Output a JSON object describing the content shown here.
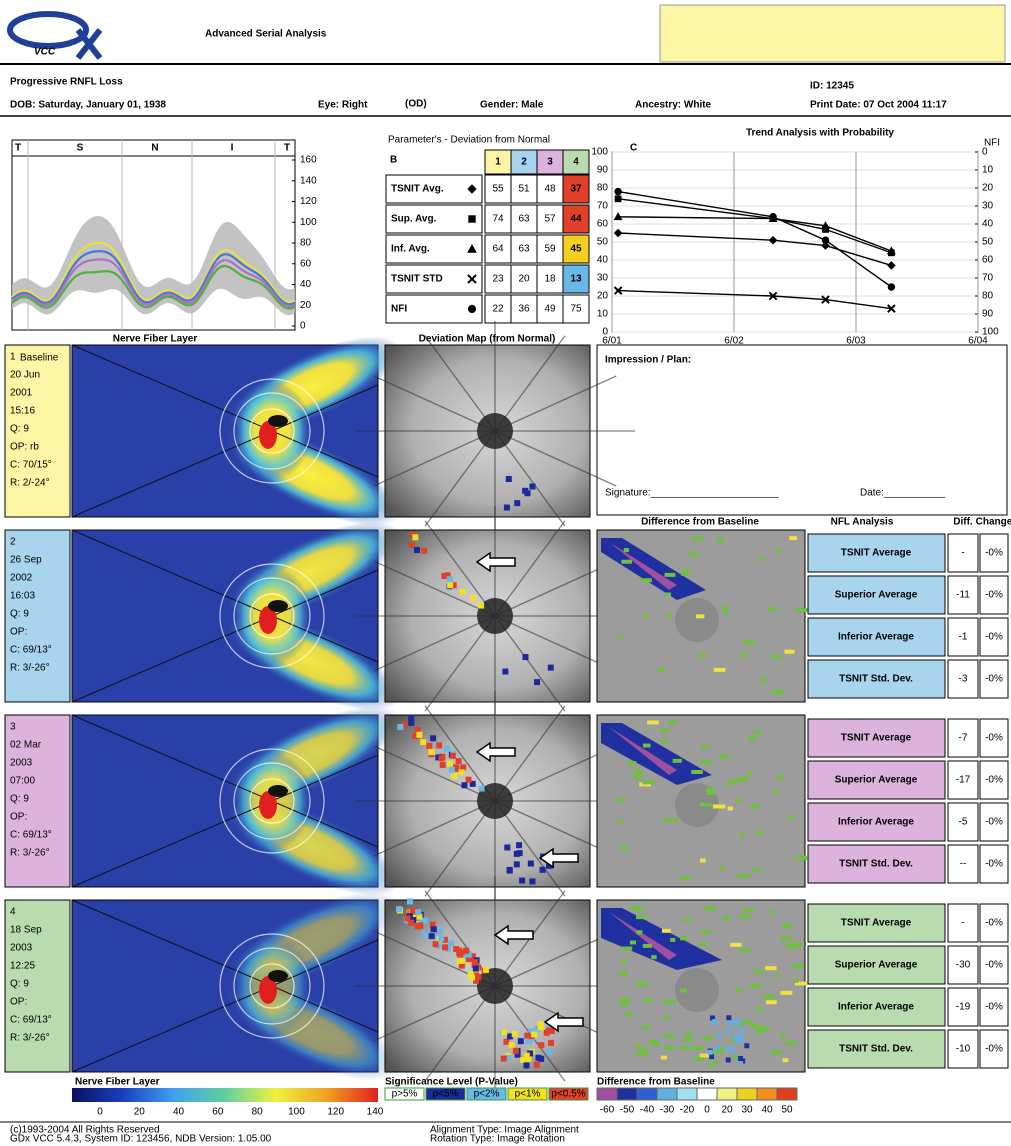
{
  "header": {
    "logo_sub": "VCC",
    "title": "Advanced Serial Analysis",
    "report_title": "Progressive RNFL Loss",
    "id": "ID: 12345"
  },
  "patient": {
    "dob": "DOB: Saturday, January 01, 1938",
    "eye": "Eye: Right",
    "eye_code": "(OD)",
    "gender": "Gender: Male",
    "ancestry": "Ancestry: White",
    "print_date": "Print Date: 07 Oct 2004 11:17"
  },
  "tsnit": {
    "sectors": [
      "T",
      "S",
      "N",
      "I",
      "T"
    ],
    "ylim": [
      0,
      160
    ],
    "yticks": [
      0,
      20,
      40,
      60,
      80,
      100,
      120,
      140,
      160
    ],
    "caption": "Nerve Fiber Layer"
  },
  "parameters": {
    "title": "Parameter's - Deviation from Normal",
    "label": "B",
    "columns": [
      "1",
      "2",
      "3",
      "4"
    ],
    "rows": [
      {
        "name": "TSNIT Avg.",
        "marker": "diamond",
        "values": [
          55,
          51,
          48,
          37
        ],
        "value_color": "#3a9a3a",
        "flag_color": "#e0402a",
        "flag_text": "#ffffff"
      },
      {
        "name": "Sup. Avg.",
        "marker": "square",
        "values": [
          74,
          63,
          57,
          44
        ],
        "value_color": "#3a9a3a",
        "flag_color": "#e0402a",
        "flag_text": "#ffffff"
      },
      {
        "name": "Inf. Avg.",
        "marker": "triangle",
        "values": [
          64,
          63,
          59,
          45
        ],
        "value_color": "#3a9a3a",
        "flag_color": "#f5d020",
        "flag_text": "#000000"
      },
      {
        "name": "TSNIT STD",
        "marker": "cross",
        "values": [
          23,
          20,
          18,
          13
        ],
        "value_color": "#3a9a3a",
        "flag_color": "#6ab8e8",
        "flag_text": "#ffffff"
      },
      {
        "name": "NFI",
        "marker": "circle",
        "values": [
          22,
          36,
          49,
          75
        ],
        "value_color": "#000000",
        "axis": "y2"
      }
    ]
  },
  "trend": {
    "label": "C",
    "title": "Trend Analysis with Probability",
    "y2_title": "NFI",
    "x": [
      2001.47,
      2002.74,
      2003.17,
      2003.71
    ],
    "xlim": [
      2001.42,
      2004.42
    ],
    "xticks": [
      {
        "value": 2001.42,
        "label": "6/01"
      },
      {
        "value": 2002.42,
        "label": "6/02"
      },
      {
        "value": 2003.42,
        "label": "6/03"
      },
      {
        "value": 2004.42,
        "label": "6/04"
      }
    ],
    "ylim": [
      0,
      100
    ],
    "yticks": [
      0,
      10,
      20,
      30,
      40,
      50,
      60,
      70,
      80,
      90,
      100
    ],
    "y2lim": [
      100,
      0
    ],
    "y2ticks": [
      0,
      10,
      20,
      30,
      40,
      50,
      60,
      70,
      80,
      90,
      100
    ],
    "grid": true
  },
  "columns": {
    "nfl": "Nerve Fiber Layer",
    "deviation": "Deviation Map (from Normal)",
    "difference": "Difference from Baseline",
    "analysis": "NFL Analysis",
    "diff": "Diff.",
    "change": "Change"
  },
  "impression": {
    "label": "Impression / Plan:",
    "signature": "Signature:_______________________",
    "date": "Date:___________"
  },
  "visits": [
    {
      "number": "1",
      "baseline": "Baseline",
      "date": "20 Jun",
      "year": "2001",
      "time": "15:16",
      "q": "Q: 9",
      "op": "OP: rb",
      "c": "C: 70/15°",
      "r": "R: 2/-24°",
      "color": "#fbf5a5",
      "trace_color": "#e8e040"
    },
    {
      "number": "2",
      "date": "26 Sep",
      "year": "2002",
      "time": "16:03",
      "q": "Q: 9",
      "op": "OP:",
      "c": "C: 69/13°",
      "r": "R: 3/-26°",
      "color": "#a9d4ee",
      "trace_color": "#4a78d8",
      "analysis": [
        [
          "TSNIT Average",
          "-",
          "-0%"
        ],
        [
          "Superior Average",
          -11,
          "-0%"
        ],
        [
          "Inferior Average",
          -1,
          "-0%"
        ],
        [
          "TSNIT Std. Dev.",
          -3,
          "-0%"
        ]
      ]
    },
    {
      "number": "3",
      "date": "02 Mar",
      "year": "2003",
      "time": "07:00",
      "q": "Q: 9",
      "op": "OP:",
      "c": "C: 69/13°",
      "r": "R: 3/-26°",
      "color": "#dcb3dc",
      "trace_color": "#b070c8",
      "analysis": [
        [
          "TSNIT Average",
          -7,
          "-0%"
        ],
        [
          "Superior Average",
          -17,
          "-0%"
        ],
        [
          "Inferior Average",
          -5,
          "-0%"
        ],
        [
          "TSNIT Std. Dev.",
          "--",
          "-0%"
        ]
      ]
    },
    {
      "number": "4",
      "date": "18 Sep",
      "year": "2003",
      "time": "12:25",
      "q": "Q: 9",
      "op": "OP:",
      "c": "C: 69/13°",
      "r": "R: 3/-26°",
      "color": "#b8dcb0",
      "trace_color": "#50b040",
      "analysis": [
        [
          "TSNIT Average",
          "-",
          "-0%"
        ],
        [
          "Superior Average",
          -30,
          "-0%"
        ],
        [
          "Inferior Average",
          -19,
          "-0%"
        ],
        [
          "TSNIT Std. Dev.",
          -10,
          "-0%"
        ]
      ]
    }
  ],
  "legend": {
    "nfl_title": "Nerve Fiber Layer",
    "nfl_ticks": [
      0,
      20,
      40,
      60,
      80,
      100,
      120,
      140
    ],
    "nfl_colors": [
      "#0a1060",
      "#1a40c0",
      "#40a0f0",
      "#60d0a0",
      "#f0f040",
      "#f0a020",
      "#e02020"
    ],
    "significance_title": "Significance Level (P-Value)",
    "significance": [
      {
        "label": "p>5%",
        "color": "#ffffff"
      },
      {
        "label": "p<5%",
        "color": "#1a2a9a"
      },
      {
        "label": "p<2%",
        "color": "#6ab8e8"
      },
      {
        "label": "p<1%",
        "color": "#f5e020"
      },
      {
        "label": "p<0.5%",
        "color": "#e0402a"
      }
    ],
    "difference_title": "Difference from Baseline",
    "difference_ticks": [
      -60,
      -50,
      -40,
      -30,
      -20,
      0,
      20,
      30,
      40,
      50
    ],
    "difference_colors": [
      "#a050a0",
      "#2030a0",
      "#3060d0",
      "#60b0e0",
      "#a0e0f0",
      "#ffffff",
      "#f0f080",
      "#f0d020",
      "#f09020",
      "#e04020"
    ]
  },
  "footer": {
    "copyright": "(c)1993-2004 All Rights Reserved",
    "system": "GDx VCC 5.4.3, System ID: 123456, NDB Version: 1.05.00",
    "alignment": "Alignment Type: Image Alignment",
    "rotation": "Rotation Type: Image Rotation"
  }
}
